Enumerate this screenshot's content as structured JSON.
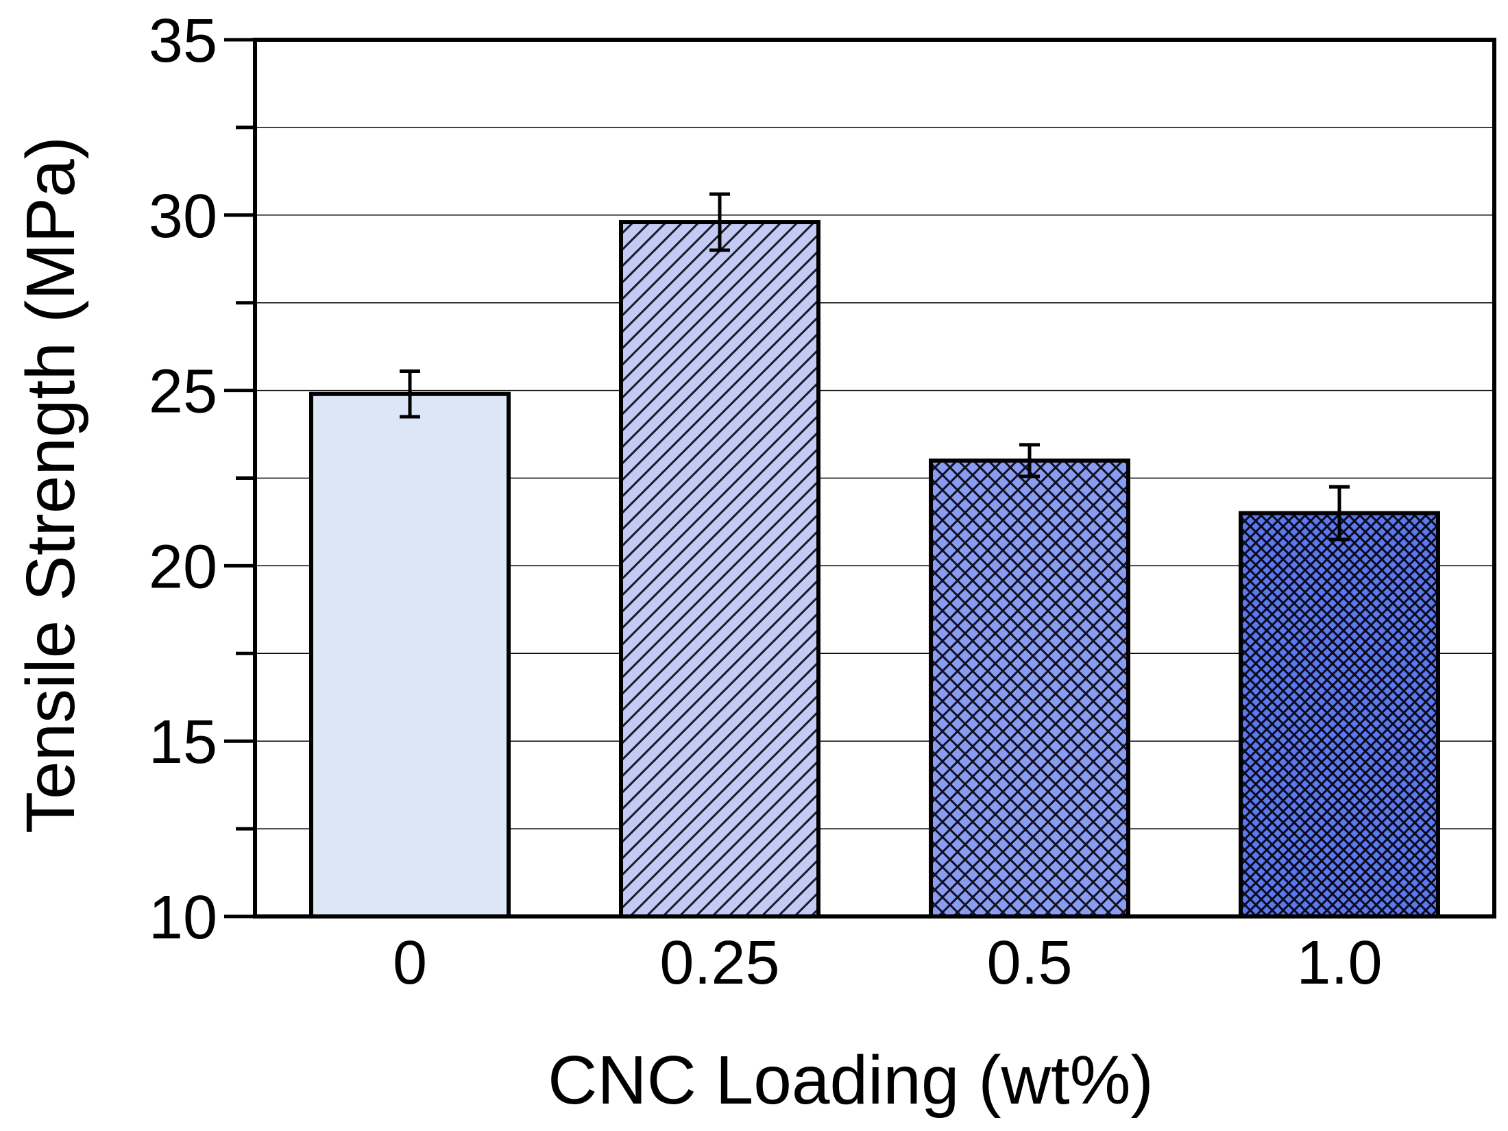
{
  "chart_data": {
    "type": "bar",
    "title": "",
    "xlabel": "CNC Loading (wt%)",
    "ylabel": "Tensile Strength (MPa)",
    "categories": [
      "0",
      "0.25",
      "0.5",
      "1.0"
    ],
    "values": [
      24.9,
      29.8,
      23.0,
      21.5
    ],
    "errors": [
      0.65,
      0.8,
      0.45,
      0.75
    ],
    "ylim": [
      10,
      35
    ],
    "yticks": [
      10,
      15,
      20,
      25,
      30,
      35
    ],
    "ytick_labels": [
      "10",
      "15",
      "20",
      "25",
      "30",
      "35"
    ],
    "grid": true,
    "bar_styles": [
      {
        "fill": "#dbe6f6",
        "pattern": "none"
      },
      {
        "fill": "#c3caf4",
        "pattern": "diagonal"
      },
      {
        "fill": "#8a9cf2",
        "pattern": "crosshatch"
      },
      {
        "fill": "#5b78ee",
        "pattern": "dense-crosshatch"
      }
    ]
  }
}
